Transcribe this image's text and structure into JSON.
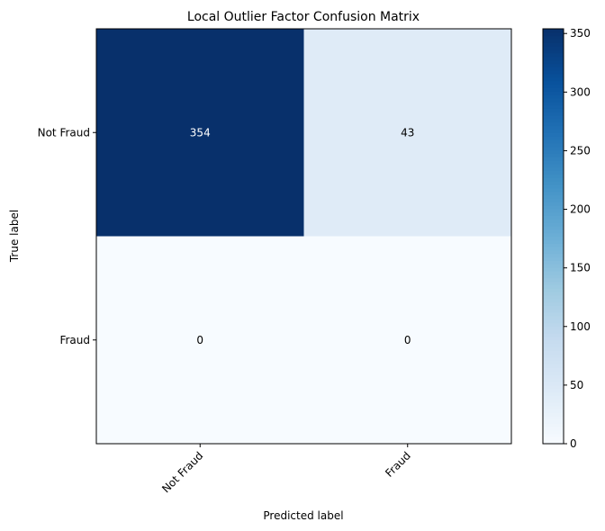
{
  "chart_data": {
    "type": "heatmap",
    "title": "Local Outlier Factor Confusion Matrix",
    "xlabel": "Predicted label",
    "ylabel": "True label",
    "x_categories": [
      "Not Fraud",
      "Fraud"
    ],
    "y_categories": [
      "Not Fraud",
      "Fraud"
    ],
    "values": [
      [
        354,
        43
      ],
      [
        0,
        0
      ]
    ],
    "colormap": "Blues",
    "color_range": [
      0,
      354
    ],
    "colorbar_ticks": [
      0,
      50,
      100,
      150,
      200,
      250,
      300,
      350
    ],
    "x_tick_rotation": 45,
    "grid": false
  },
  "colors": {
    "low": "#f7fbff",
    "high": "#08306b",
    "text_light": "#ffffff",
    "text_dark": "#000000"
  }
}
